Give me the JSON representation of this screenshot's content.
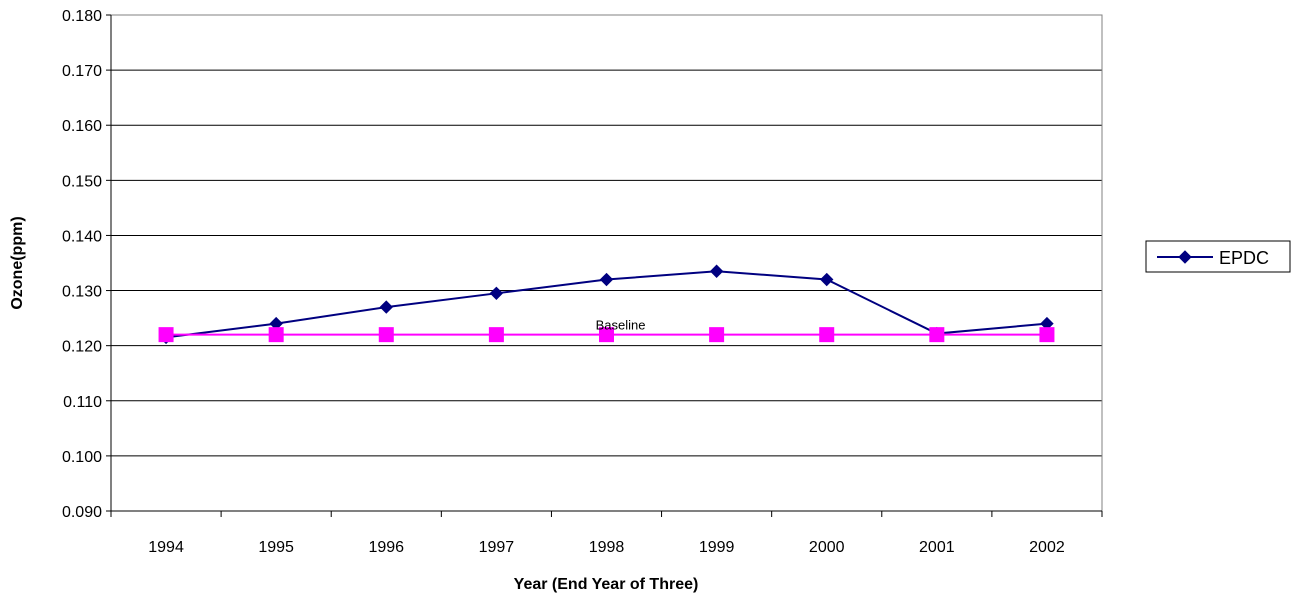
{
  "chart_data": {
    "type": "line",
    "title": "",
    "xlabel": "Year (End Year of Three)",
    "ylabel": "Ozone(ppm)",
    "categories": [
      "1994",
      "1995",
      "1996",
      "1997",
      "1998",
      "1999",
      "2000",
      "2001",
      "2002"
    ],
    "ylim": [
      0.09,
      0.18
    ],
    "yticks": [
      "0.090",
      "0.100",
      "0.110",
      "0.120",
      "0.130",
      "0.140",
      "0.150",
      "0.160",
      "0.170",
      "0.180"
    ],
    "grid": true,
    "legend_position": "right",
    "series": [
      {
        "name": "EPDC",
        "values": [
          0.1215,
          0.124,
          0.127,
          0.1295,
          0.132,
          0.1335,
          0.132,
          0.1222,
          0.124
        ],
        "color": "#000080",
        "marker": "diamond",
        "in_legend": true
      },
      {
        "name": "",
        "values": [
          0.122,
          0.122,
          0.122,
          0.122,
          0.122,
          0.122,
          0.122,
          0.122,
          0.122
        ],
        "color": "#ff00ff",
        "marker": "square",
        "in_legend": false
      }
    ],
    "annotations": [
      {
        "text": "Baseline",
        "x": "1998",
        "y": 0.1235
      }
    ]
  }
}
